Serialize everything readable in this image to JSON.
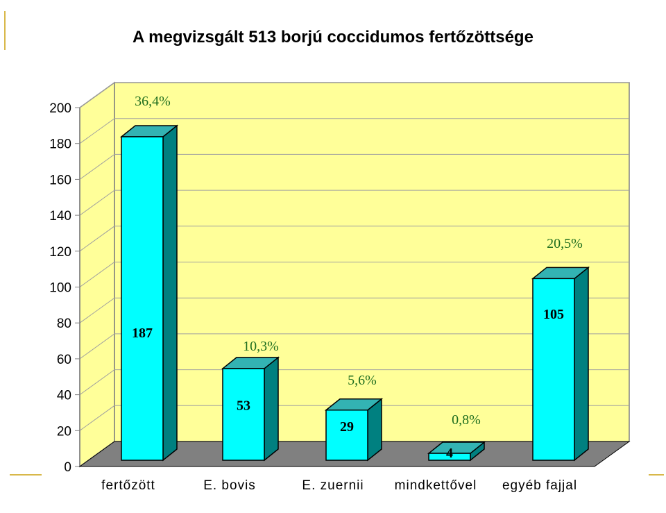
{
  "chart_data": {
    "type": "bar",
    "title": "A megvizsgált 513 borjú coccidumos fertőzöttsége",
    "categories": [
      "fertőzött",
      "E. bovis",
      "E. zuernii",
      "mindkettővel",
      "egyéb fajjal"
    ],
    "values": [
      187,
      53,
      29,
      4,
      105
    ],
    "value_labels": [
      "187",
      "53",
      "29",
      "4",
      "105"
    ],
    "percent_labels": [
      "36,4%",
      "10,3%",
      "5,6%",
      "0,8%",
      "20,5%"
    ],
    "ylim": [
      0,
      200
    ],
    "yticks": [
      "0",
      "20",
      "40",
      "60",
      "80",
      "100",
      "120",
      "140",
      "160",
      "180",
      "200"
    ],
    "grid": true,
    "legend": "none",
    "colors": {
      "bar_front": "#00ffff",
      "bar_side": "#008080",
      "bar_top": "#33b3b3",
      "wall": "#ffff99",
      "floor": "#808080"
    }
  }
}
